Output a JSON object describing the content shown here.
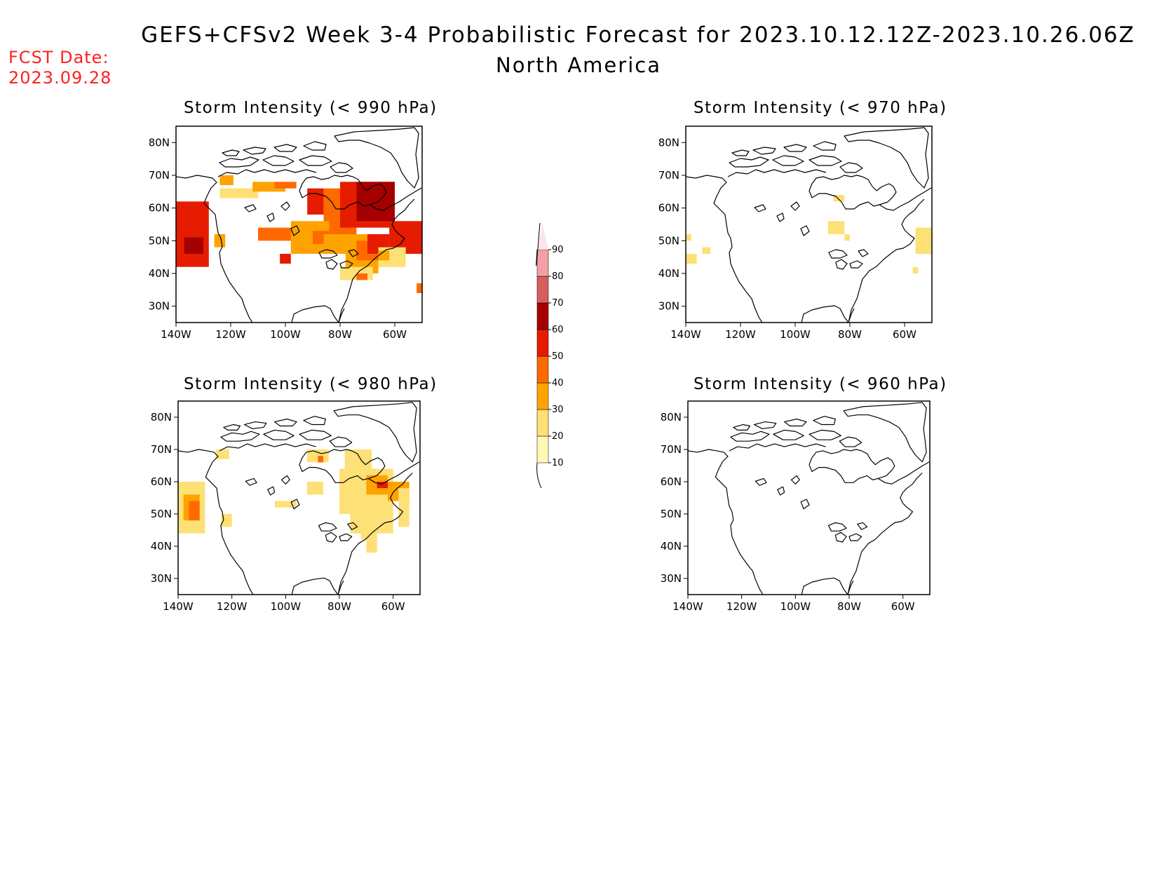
{
  "header": {
    "title": "GEFS+CFSv2 Week 3-4 Probabilistic Forecast for 2023.10.12.12Z-2023.10.26.06Z",
    "subtitle": "North America",
    "fcst_label": "FCST Date:",
    "fcst_date": "2023.09.28"
  },
  "panels": [
    {
      "id": "p990",
      "title": "Storm Intensity (< 990 hPa)"
    },
    {
      "id": "p970",
      "title": "Storm Intensity (< 970 hPa)"
    },
    {
      "id": "p980",
      "title": "Storm Intensity (< 980 hPa)"
    },
    {
      "id": "p960",
      "title": "Storm Intensity (< 960 hPa)"
    }
  ],
  "axes": {
    "lat_ticks": [
      "80N",
      "70N",
      "60N",
      "50N",
      "40N",
      "30N"
    ],
    "lon_ticks": [
      "140W",
      "120W",
      "100W",
      "80W",
      "60W"
    ],
    "lat_values": [
      80,
      70,
      60,
      50,
      40,
      30
    ],
    "lon_values": [
      -140,
      -120,
      -100,
      -80,
      -60
    ],
    "lat_range": [
      25,
      85
    ],
    "lon_range": [
      -140,
      -50
    ]
  },
  "colorbar": {
    "levels": [
      10,
      20,
      30,
      40,
      50,
      60,
      70,
      80,
      90
    ],
    "labels": [
      "10",
      "20",
      "30",
      "40",
      "50",
      "60",
      "70",
      "80",
      "90"
    ],
    "colors": [
      "#fff9b5",
      "#fde076",
      "#ffa300",
      "#ff6a00",
      "#e51c00",
      "#a50000",
      "#d85d5d",
      "#f4a0a5",
      "#fde4ea"
    ]
  },
  "map_data": {
    "p990": [
      [
        -140,
        62,
        -128,
        42,
        4
      ],
      [
        -137,
        51,
        -130,
        46,
        5
      ],
      [
        -126,
        52,
        -122,
        48,
        2
      ],
      [
        -124,
        70,
        -119,
        67,
        2
      ],
      [
        -124,
        66,
        -110,
        63,
        1
      ],
      [
        -112,
        68,
        -100,
        65,
        2
      ],
      [
        -104,
        68,
        -96,
        66,
        3
      ],
      [
        -92,
        66,
        -86,
        58,
        4
      ],
      [
        -86,
        66,
        -74,
        52,
        3
      ],
      [
        -80,
        68,
        -60,
        54,
        4
      ],
      [
        -74,
        68,
        -60,
        56,
        5
      ],
      [
        -66,
        62,
        -60,
        56,
        5
      ],
      [
        -62,
        56,
        -50,
        46,
        4
      ],
      [
        -110,
        54,
        -88,
        50,
        3
      ],
      [
        -98,
        56,
        -84,
        46,
        2
      ],
      [
        -90,
        53,
        -84,
        49,
        3
      ],
      [
        -102,
        46,
        -98,
        43,
        4
      ],
      [
        -86,
        52,
        -70,
        46,
        2
      ],
      [
        -78,
        50,
        -66,
        40,
        2
      ],
      [
        -74,
        50,
        -64,
        44,
        3
      ],
      [
        -70,
        52,
        -62,
        46,
        4
      ],
      [
        -62,
        52,
        -52,
        46,
        4
      ],
      [
        -66,
        48,
        -56,
        42,
        1
      ],
      [
        -80,
        42,
        -68,
        38,
        1
      ],
      [
        -74,
        40,
        -70,
        38,
        3
      ],
      [
        -52,
        37,
        -50,
        34,
        3
      ],
      [
        -66,
        47,
        -62,
        44,
        2
      ]
    ],
    "p970": [
      [
        -140,
        52,
        -138,
        50,
        1
      ],
      [
        -140,
        46,
        -136,
        43,
        1
      ],
      [
        -134,
        48,
        -131,
        46,
        1
      ],
      [
        -86,
        64,
        -82,
        62,
        1
      ],
      [
        -88,
        56,
        -82,
        52,
        1
      ],
      [
        -82,
        52,
        -80,
        50,
        1
      ],
      [
        -56,
        54,
        -50,
        46,
        1
      ],
      [
        -57,
        42,
        -55,
        40,
        1
      ]
    ],
    "p980": [
      [
        -140,
        60,
        -130,
        44,
        1
      ],
      [
        -138,
        56,
        -132,
        48,
        2
      ],
      [
        -136,
        54,
        -132,
        48,
        3
      ],
      [
        -124,
        50,
        -120,
        46,
        1
      ],
      [
        -126,
        70,
        -121,
        67,
        1
      ],
      [
        -92,
        70,
        -84,
        66,
        1
      ],
      [
        -88,
        68,
        -86,
        66,
        3
      ],
      [
        -92,
        60,
        -86,
        56,
        1
      ],
      [
        -78,
        70,
        -68,
        64,
        1
      ],
      [
        -80,
        64,
        -60,
        50,
        1
      ],
      [
        -70,
        62,
        -62,
        56,
        2
      ],
      [
        -66,
        60,
        -62,
        58,
        4
      ],
      [
        -62,
        60,
        -54,
        54,
        2
      ],
      [
        -58,
        58,
        -54,
        46,
        1
      ],
      [
        -76,
        50,
        -60,
        44,
        1
      ],
      [
        -72,
        46,
        -66,
        42,
        1
      ],
      [
        -70,
        42,
        -66,
        38,
        1
      ],
      [
        -104,
        54,
        -96,
        52,
        1
      ],
      [
        -66,
        58,
        -64,
        56,
        2
      ]
    ],
    "p960": []
  }
}
